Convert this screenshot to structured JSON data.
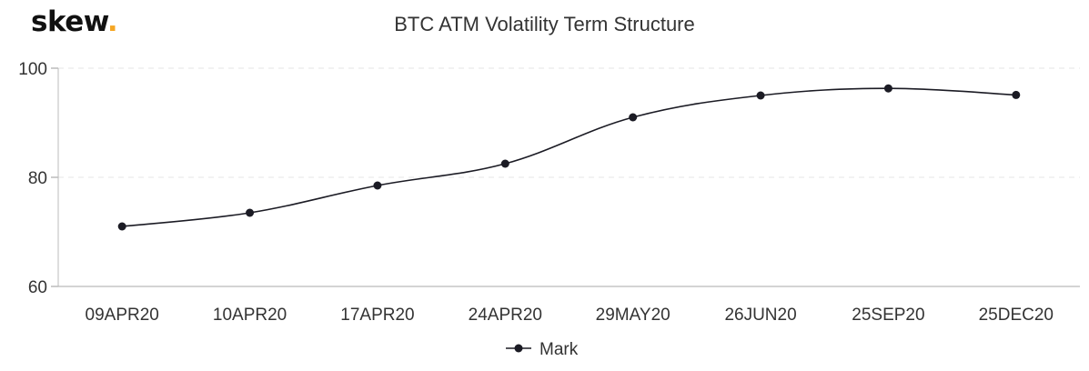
{
  "logo": {
    "text": "skew",
    "dot": "."
  },
  "chart_data": {
    "type": "line",
    "title": "BTC ATM Volatility Term Structure",
    "xlabel": "",
    "ylabel": "",
    "categories": [
      "09APR20",
      "10APR20",
      "17APR20",
      "24APR20",
      "29MAY20",
      "26JUN20",
      "25SEP20",
      "25DEC20"
    ],
    "series": [
      {
        "name": "Mark",
        "values": [
          71.0,
          73.5,
          78.5,
          82.5,
          91.0,
          95.0,
          96.3,
          95.1
        ],
        "color": "#1b1b24"
      }
    ],
    "ylim": [
      60,
      100
    ],
    "yticks": [
      "60",
      "80",
      "100"
    ],
    "grid": true,
    "legend": "bottom-center"
  }
}
